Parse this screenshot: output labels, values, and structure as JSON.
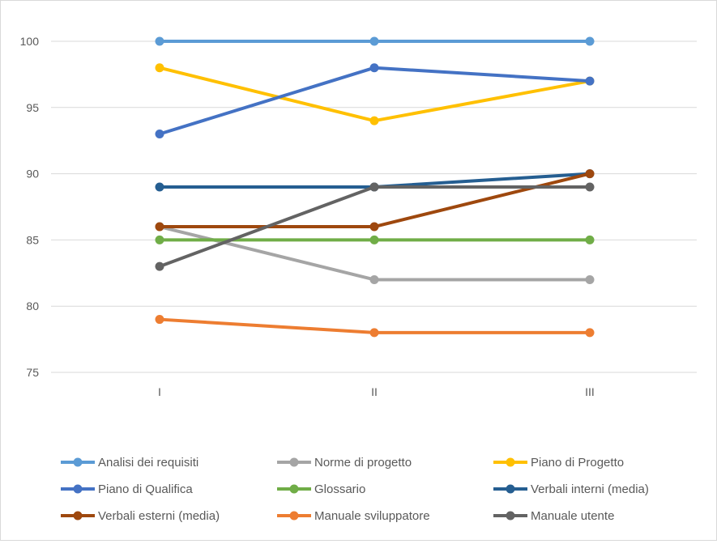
{
  "chart_data": {
    "type": "line",
    "title": "",
    "xlabel": "",
    "ylabel": "",
    "categories": [
      "I",
      "II",
      "III"
    ],
    "ylim": [
      75,
      100
    ],
    "yticks": [
      75,
      80,
      85,
      90,
      95,
      100
    ],
    "grid": true,
    "legend_position": "bottom",
    "series": [
      {
        "name": "Analisi dei requisiti",
        "color": "#5b9bd5",
        "values": [
          100,
          100,
          100
        ]
      },
      {
        "name": "Norme di progetto",
        "color": "#a5a5a5",
        "values": [
          86,
          82,
          82
        ]
      },
      {
        "name": "Piano di Progetto",
        "color": "#ffc000",
        "values": [
          98,
          94,
          97
        ]
      },
      {
        "name": "Piano di Qualifica",
        "color": "#4472c4",
        "values": [
          93,
          98,
          97
        ]
      },
      {
        "name": "Glossario",
        "color": "#70ad47",
        "values": [
          85,
          85,
          85
        ]
      },
      {
        "name": "Verbali interni (media)",
        "color": "#255e91",
        "values": [
          89,
          89,
          90
        ]
      },
      {
        "name": "Verbali esterni (media)",
        "color": "#9e480e",
        "values": [
          86,
          86,
          90
        ]
      },
      {
        "name": "Manuale sviluppatore",
        "color": "#ed7d31",
        "values": [
          79,
          78,
          78
        ]
      },
      {
        "name": "Manuale utente",
        "color": "#636363",
        "values": [
          83,
          89,
          89
        ]
      }
    ]
  }
}
